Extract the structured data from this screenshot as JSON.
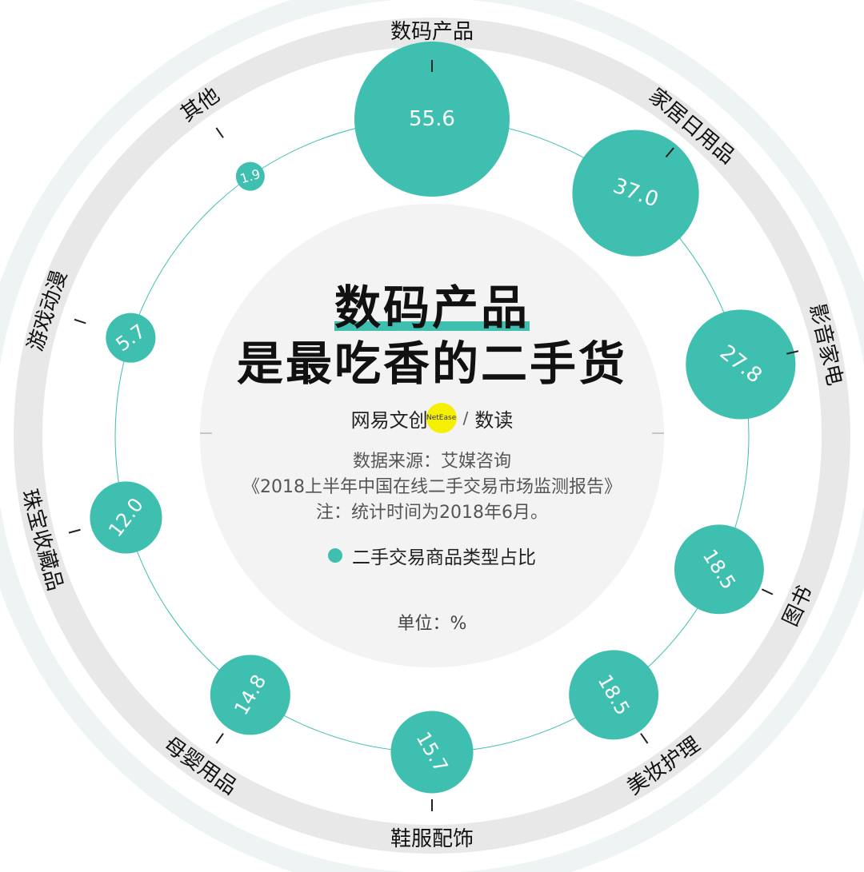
{
  "chart_data": {
    "type": "bubble-radial",
    "title_line1": "数码产品",
    "title_line2": "是最吃香的二手货",
    "unit_label": "单位：%",
    "legend": "二手交易商品类型占比",
    "series_color": "#3fbfaf",
    "categories": [
      "数码产品",
      "家居日用品",
      "影音家电",
      "图书",
      "美妆护理",
      "鞋服配饰",
      "母婴用品",
      "珠宝收藏品",
      "游戏动漫",
      "其他"
    ],
    "values": [
      55.6,
      37.0,
      27.8,
      18.5,
      18.5,
      15.7,
      14.8,
      12.0,
      5.7,
      1.9
    ],
    "value_labels": [
      "55.6",
      "37.0",
      "27.8",
      "18.5",
      "18.5",
      "15.7",
      "14.8",
      "12.0",
      "5.7",
      "1.9"
    ],
    "angles_deg": [
      0,
      40,
      77,
      115,
      145,
      180,
      215,
      255,
      288,
      325
    ]
  },
  "brand": {
    "name": "网易文创",
    "badge": "NetEase",
    "section": "数读"
  },
  "source": {
    "line1": "数据来源：艾媒咨询",
    "line2": "《2018上半年中国在线二手交易市场监测报告》",
    "line3": "注：统计时间为2018年6月。"
  }
}
